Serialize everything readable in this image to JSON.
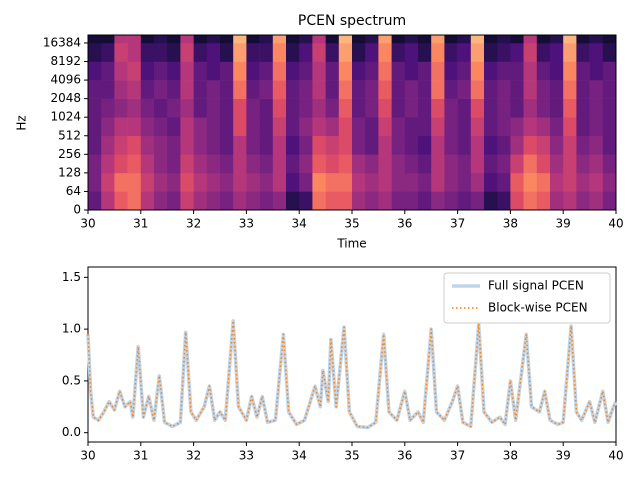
{
  "chart_data": [
    {
      "type": "heatmap",
      "title": "PCEN spectrum",
      "xlabel": "Time",
      "ylabel": "Hz",
      "xlim": [
        30,
        40
      ],
      "xticks": [
        30,
        31,
        32,
        33,
        34,
        35,
        36,
        37,
        38,
        39,
        40
      ],
      "ylim": [
        0,
        22050
      ],
      "yticks": [
        0,
        64,
        128,
        256,
        512,
        1024,
        2048,
        4096,
        8192,
        16384
      ],
      "yscale": "symlog",
      "linthresh": 64,
      "base": 2,
      "colormap": "magma",
      "vmin": 0,
      "vmax": 1,
      "x_bins": [
        30,
        30.25,
        30.5,
        30.75,
        31,
        31.25,
        31.5,
        31.75,
        32,
        32.25,
        32.5,
        32.75,
        33,
        33.25,
        33.5,
        33.75,
        34,
        34.25,
        34.5,
        34.75,
        35,
        35.25,
        35.5,
        35.75,
        36,
        36.25,
        36.5,
        36.75,
        37,
        37.25,
        37.5,
        37.75,
        38,
        38.25,
        38.5,
        38.75,
        39,
        39.25,
        39.5,
        39.75,
        40
      ],
      "y_bins": [
        0,
        64,
        128,
        256,
        512,
        1024,
        2048,
        4096,
        8192,
        16384,
        22050
      ],
      "values": [
        [
          0.3,
          0.5,
          0.65,
          0.7,
          0.5,
          0.4,
          0.35,
          0.55,
          0.45,
          0.4,
          0.35,
          0.45,
          0.4,
          0.35,
          0.4,
          0.15,
          0.2,
          0.7,
          0.65,
          0.65,
          0.45,
          0.4,
          0.45,
          0.35,
          0.35,
          0.3,
          0.4,
          0.35,
          0.3,
          0.35,
          0.15,
          0.2,
          0.6,
          0.7,
          0.65,
          0.45,
          0.5,
          0.4,
          0.45,
          0.35
        ],
        [
          0.35,
          0.55,
          0.7,
          0.7,
          0.55,
          0.45,
          0.4,
          0.6,
          0.5,
          0.45,
          0.4,
          0.5,
          0.45,
          0.4,
          0.5,
          0.25,
          0.35,
          0.75,
          0.7,
          0.7,
          0.5,
          0.45,
          0.5,
          0.4,
          0.4,
          0.35,
          0.5,
          0.4,
          0.35,
          0.45,
          0.25,
          0.3,
          0.65,
          0.75,
          0.7,
          0.5,
          0.55,
          0.45,
          0.5,
          0.4
        ],
        [
          0.35,
          0.5,
          0.6,
          0.65,
          0.5,
          0.4,
          0.35,
          0.55,
          0.45,
          0.4,
          0.35,
          0.5,
          0.4,
          0.35,
          0.5,
          0.3,
          0.4,
          0.65,
          0.6,
          0.65,
          0.45,
          0.4,
          0.5,
          0.4,
          0.35,
          0.3,
          0.5,
          0.4,
          0.35,
          0.5,
          0.3,
          0.35,
          0.55,
          0.7,
          0.6,
          0.45,
          0.55,
          0.4,
          0.45,
          0.35
        ],
        [
          0.3,
          0.45,
          0.55,
          0.6,
          0.45,
          0.4,
          0.35,
          0.5,
          0.4,
          0.35,
          0.3,
          0.5,
          0.35,
          0.3,
          0.5,
          0.25,
          0.35,
          0.6,
          0.55,
          0.6,
          0.35,
          0.3,
          0.5,
          0.35,
          0.3,
          0.25,
          0.5,
          0.35,
          0.3,
          0.5,
          0.25,
          0.3,
          0.45,
          0.6,
          0.55,
          0.4,
          0.55,
          0.35,
          0.4,
          0.3
        ],
        [
          0.3,
          0.4,
          0.5,
          0.5,
          0.4,
          0.35,
          0.3,
          0.5,
          0.4,
          0.35,
          0.3,
          0.6,
          0.35,
          0.3,
          0.55,
          0.3,
          0.4,
          0.5,
          0.45,
          0.6,
          0.35,
          0.3,
          0.55,
          0.35,
          0.3,
          0.3,
          0.55,
          0.35,
          0.3,
          0.55,
          0.3,
          0.35,
          0.4,
          0.5,
          0.45,
          0.35,
          0.6,
          0.3,
          0.35,
          0.3
        ],
        [
          0.3,
          0.35,
          0.4,
          0.45,
          0.35,
          0.3,
          0.35,
          0.45,
          0.3,
          0.35,
          0.3,
          0.6,
          0.35,
          0.3,
          0.6,
          0.3,
          0.35,
          0.45,
          0.35,
          0.65,
          0.3,
          0.35,
          0.6,
          0.3,
          0.35,
          0.3,
          0.6,
          0.35,
          0.3,
          0.6,
          0.3,
          0.35,
          0.3,
          0.45,
          0.35,
          0.3,
          0.65,
          0.3,
          0.35,
          0.3
        ],
        [
          0.3,
          0.3,
          0.45,
          0.5,
          0.3,
          0.35,
          0.3,
          0.5,
          0.3,
          0.35,
          0.3,
          0.7,
          0.3,
          0.35,
          0.65,
          0.3,
          0.35,
          0.5,
          0.3,
          0.7,
          0.3,
          0.35,
          0.65,
          0.3,
          0.35,
          0.3,
          0.7,
          0.3,
          0.35,
          0.7,
          0.3,
          0.35,
          0.3,
          0.5,
          0.35,
          0.3,
          0.7,
          0.3,
          0.35,
          0.3
        ],
        [
          0.25,
          0.3,
          0.5,
          0.55,
          0.25,
          0.3,
          0.25,
          0.5,
          0.3,
          0.25,
          0.3,
          0.75,
          0.25,
          0.3,
          0.7,
          0.25,
          0.3,
          0.5,
          0.3,
          0.75,
          0.25,
          0.3,
          0.7,
          0.3,
          0.25,
          0.3,
          0.7,
          0.25,
          0.3,
          0.75,
          0.25,
          0.3,
          0.3,
          0.5,
          0.3,
          0.25,
          0.75,
          0.3,
          0.25,
          0.3
        ],
        [
          0.15,
          0.2,
          0.55,
          0.5,
          0.2,
          0.2,
          0.15,
          0.55,
          0.2,
          0.25,
          0.15,
          0.8,
          0.2,
          0.2,
          0.75,
          0.15,
          0.25,
          0.55,
          0.2,
          0.8,
          0.15,
          0.25,
          0.75,
          0.2,
          0.25,
          0.15,
          0.75,
          0.2,
          0.25,
          0.8,
          0.15,
          0.2,
          0.25,
          0.55,
          0.2,
          0.25,
          0.8,
          0.2,
          0.25,
          0.15
        ],
        [
          0.1,
          0.1,
          0.5,
          0.5,
          0.1,
          0.15,
          0.1,
          0.5,
          0.1,
          0.15,
          0.1,
          0.85,
          0.1,
          0.15,
          0.8,
          0.1,
          0.15,
          0.5,
          0.1,
          0.85,
          0.1,
          0.15,
          0.8,
          0.1,
          0.15,
          0.1,
          0.8,
          0.1,
          0.15,
          0.85,
          0.1,
          0.15,
          0.1,
          0.5,
          0.1,
          0.15,
          0.85,
          0.1,
          0.15,
          0.1
        ]
      ]
    },
    {
      "type": "line",
      "xlim": [
        30,
        40
      ],
      "xticks": [
        30,
        31,
        32,
        33,
        34,
        35,
        36,
        37,
        38,
        39,
        40
      ],
      "ylim": [
        -0.09,
        1.6
      ],
      "yticks": [
        {
          "value": 0,
          "label": "0.0"
        },
        0.5,
        {
          "value": 1,
          "label": "1.0"
        },
        1.5
      ],
      "legend": "upper right",
      "x": [
        30.0,
        30.05,
        30.1,
        30.2,
        30.3,
        30.4,
        30.5,
        30.6,
        30.7,
        30.8,
        30.85,
        30.95,
        31.05,
        31.15,
        31.25,
        31.35,
        31.45,
        31.6,
        31.75,
        31.85,
        31.95,
        32.05,
        32.2,
        32.3,
        32.4,
        32.5,
        32.6,
        32.75,
        32.85,
        33.0,
        33.1,
        33.2,
        33.3,
        33.4,
        33.55,
        33.7,
        33.8,
        33.95,
        34.1,
        34.3,
        34.4,
        34.45,
        34.55,
        34.6,
        34.7,
        34.85,
        34.95,
        35.1,
        35.3,
        35.45,
        35.6,
        35.7,
        35.85,
        36.0,
        36.1,
        36.25,
        36.35,
        36.5,
        36.6,
        36.75,
        36.9,
        37.0,
        37.1,
        37.25,
        37.4,
        37.5,
        37.65,
        37.8,
        37.9,
        38.0,
        38.1,
        38.3,
        38.4,
        38.55,
        38.65,
        38.75,
        38.9,
        39.0,
        39.15,
        39.25,
        39.35,
        39.5,
        39.6,
        39.75,
        39.85,
        39.95,
        40.0
      ],
      "series": [
        {
          "name": "Full signal PCEN",
          "color": "#bfd5ea",
          "linestyle": "solid",
          "values": [
            0.95,
            0.4,
            0.15,
            0.12,
            0.2,
            0.3,
            0.22,
            0.4,
            0.25,
            0.3,
            0.15,
            0.83,
            0.15,
            0.35,
            0.12,
            0.55,
            0.1,
            0.06,
            0.1,
            0.97,
            0.2,
            0.12,
            0.25,
            0.45,
            0.12,
            0.2,
            0.12,
            1.08,
            0.25,
            0.12,
            0.35,
            0.15,
            0.35,
            0.1,
            0.12,
            0.95,
            0.2,
            0.08,
            0.12,
            0.45,
            0.25,
            0.6,
            0.3,
            0.9,
            0.25,
            1.02,
            0.2,
            0.06,
            0.05,
            0.1,
            0.95,
            0.2,
            0.12,
            0.4,
            0.12,
            0.2,
            0.1,
            1.0,
            0.2,
            0.12,
            0.3,
            0.45,
            0.1,
            0.06,
            1.05,
            0.2,
            0.1,
            0.15,
            0.08,
            0.5,
            0.12,
            0.95,
            0.25,
            0.2,
            0.4,
            0.12,
            0.08,
            0.1,
            1.03,
            0.2,
            0.12,
            0.3,
            0.1,
            0.4,
            0.1,
            0.25,
            0.3
          ]
        },
        {
          "name": "Block-wise PCEN",
          "color": "#ff7f0e",
          "linestyle": "dotted",
          "values": [
            0.95,
            0.4,
            0.15,
            0.12,
            0.2,
            0.3,
            0.22,
            0.4,
            0.25,
            0.3,
            0.15,
            0.83,
            0.15,
            0.35,
            0.12,
            0.55,
            0.1,
            0.06,
            0.1,
            0.97,
            0.2,
            0.12,
            0.25,
            0.45,
            0.12,
            0.2,
            0.12,
            1.08,
            0.25,
            0.12,
            0.35,
            0.15,
            0.35,
            0.1,
            0.12,
            0.95,
            0.2,
            0.08,
            0.12,
            0.45,
            0.25,
            0.6,
            0.3,
            0.9,
            0.25,
            1.02,
            0.2,
            0.06,
            0.05,
            0.1,
            0.95,
            0.2,
            0.12,
            0.4,
            0.12,
            0.2,
            0.1,
            1.0,
            0.2,
            0.12,
            0.3,
            0.45,
            0.1,
            0.06,
            1.05,
            0.2,
            0.1,
            0.15,
            0.08,
            0.5,
            0.12,
            0.95,
            0.25,
            0.2,
            0.4,
            0.12,
            0.08,
            0.1,
            1.03,
            0.2,
            0.12,
            0.3,
            0.1,
            0.4,
            0.1,
            0.25,
            0.3
          ]
        }
      ]
    }
  ]
}
